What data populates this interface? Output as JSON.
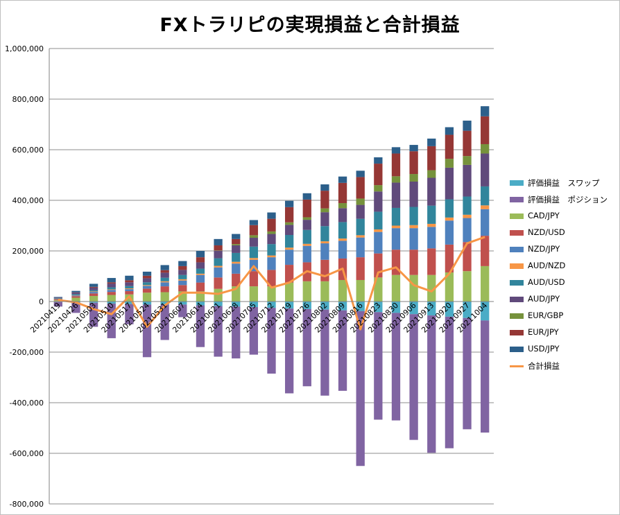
{
  "chart_data": {
    "type": "bar",
    "subtype": "stacked-bar-with-line",
    "title": "FXトラリピの実現損益と合計損益",
    "xlabel": "",
    "ylabel": "",
    "ylim": [
      -800000,
      1000000
    ],
    "yticks": [
      -800000,
      -600000,
      -400000,
      -200000,
      0,
      200000,
      400000,
      600000,
      800000,
      1000000
    ],
    "ytick_labels": [
      "-800,000",
      "-600,000",
      "-400,000",
      "-200,000",
      "0",
      "200,000",
      "400,000",
      "600,000",
      "800,000",
      "1,000,000"
    ],
    "grid": true,
    "legend_position": "right",
    "categories": [
      "20210419",
      "20210426",
      "20210503",
      "20210510",
      "20210517",
      "20210524",
      "20210531",
      "20210607",
      "20210614",
      "20210621",
      "20210628",
      "20210705",
      "20210712",
      "20210719",
      "20210726",
      "20210802",
      "20210809",
      "20210816",
      "20210823",
      "20210830",
      "20210906",
      "20210913",
      "20210920",
      "20210927",
      "20211004"
    ],
    "x_tick_labels": [
      "20210419",
      "20210426",
      "20210503",
      "20210510",
      "20210517",
      "20210524",
      "20210531",
      "20210607",
      "20210614",
      "20210621",
      "20210628",
      "20210705",
      "20210712",
      "20210719",
      "20210726",
      "20210802",
      "20210809",
      "20210816",
      "20210823",
      "20210830",
      "20210906",
      "20210913",
      "20210920",
      "20210927",
      "20211004"
    ],
    "series": [
      {
        "name": "評価損益　スワップ",
        "color": "#4bacc6",
        "kind": "bar",
        "values": [
          -2000,
          -3000,
          -5000,
          -8000,
          -10000,
          -12000,
          -12000,
          -12000,
          -15000,
          -18000,
          -20000,
          -22000,
          -25000,
          -28000,
          -30000,
          -32000,
          -35000,
          -38000,
          -42000,
          -45000,
          -50000,
          -55000,
          -60000,
          -65000,
          -75000
        ]
      },
      {
        "name": "評価損益　ポジション",
        "color": "#8064a2",
        "kind": "bar",
        "values": [
          -18000,
          -42000,
          -95000,
          -137000,
          -80000,
          -208000,
          -140000,
          -50000,
          -165000,
          -200000,
          -205000,
          -188000,
          -260000,
          -335000,
          -305000,
          -340000,
          -318000,
          -612000,
          -425000,
          -425000,
          -497000,
          -543000,
          -520000,
          -440000,
          -443000
        ]
      },
      {
        "name": "CAD/JPY",
        "color": "#9bbb59",
        "kind": "bar",
        "values": [
          5000,
          15000,
          22000,
          26000,
          28000,
          35000,
          37000,
          40000,
          40000,
          50000,
          60000,
          60000,
          60000,
          75000,
          80000,
          80000,
          85000,
          85000,
          95000,
          105000,
          105000,
          105000,
          115000,
          120000,
          140000
        ]
      },
      {
        "name": "NZD/USD",
        "color": "#c0504d",
        "kind": "bar",
        "values": [
          3000,
          6000,
          10000,
          12000,
          13000,
          16000,
          23000,
          25000,
          35000,
          45000,
          50000,
          60000,
          65000,
          70000,
          75000,
          85000,
          85000,
          90000,
          95000,
          100000,
          100000,
          105000,
          110000,
          115000,
          120000
        ]
      },
      {
        "name": "NZD/JPY",
        "color": "#4f81bd",
        "kind": "bar",
        "values": [
          2000,
          3000,
          6000,
          8000,
          8000,
          11000,
          16000,
          18000,
          30000,
          40000,
          40000,
          45000,
          50000,
          60000,
          65000,
          65000,
          70000,
          78000,
          85000,
          85000,
          85000,
          85000,
          95000,
          95000,
          105000
        ]
      },
      {
        "name": "AUD/NZD",
        "color": "#f79646",
        "kind": "bar",
        "values": [
          1000,
          1000,
          2000,
          2000,
          3000,
          3000,
          4000,
          5000,
          5000,
          6000,
          7000,
          7000,
          7000,
          8000,
          8000,
          8000,
          9000,
          9000,
          10000,
          10000,
          12000,
          12000,
          12000,
          13000,
          15000
        ]
      },
      {
        "name": "AUD/USD",
        "color": "#31859c",
        "kind": "bar",
        "values": [
          2000,
          4000,
          5000,
          8000,
          9000,
          11000,
          14000,
          17000,
          20000,
          30000,
          35000,
          45000,
          45000,
          50000,
          55000,
          60000,
          65000,
          65000,
          70000,
          70000,
          72000,
          72000,
          72000,
          72000,
          75000
        ]
      },
      {
        "name": "AUD/JPY",
        "color": "#604a7b",
        "kind": "bar",
        "values": [
          3000,
          6000,
          10000,
          15000,
          15000,
          16000,
          20000,
          20000,
          25000,
          30000,
          30000,
          35000,
          40000,
          40000,
          40000,
          55000,
          55000,
          55000,
          80000,
          100000,
          100000,
          110000,
          125000,
          125000,
          130000
        ]
      },
      {
        "name": "EUR/GBP",
        "color": "#76923c",
        "kind": "bar",
        "values": [
          0,
          0,
          0,
          0,
          0,
          0,
          0,
          0,
          0,
          1000,
          5000,
          10000,
          10000,
          10000,
          10000,
          15000,
          20000,
          25000,
          25000,
          25000,
          30000,
          30000,
          35000,
          35000,
          37000
        ]
      },
      {
        "name": "EUR/JPY",
        "color": "#953735",
        "kind": "bar",
        "values": [
          0,
          1000,
          3000,
          5000,
          8000,
          10000,
          10000,
          15000,
          20000,
          20000,
          20000,
          40000,
          50000,
          60000,
          70000,
          70000,
          80000,
          85000,
          85000,
          90000,
          90000,
          95000,
          95000,
          100000,
          110000
        ]
      },
      {
        "name": "USD/JPY",
        "color": "#2c5f8a",
        "kind": "bar",
        "values": [
          2000,
          6000,
          12000,
          17000,
          18000,
          16000,
          20000,
          20000,
          25000,
          25000,
          20000,
          20000,
          25000,
          25000,
          25000,
          25000,
          25000,
          25000,
          25000,
          25000,
          25000,
          30000,
          30000,
          40000,
          40000
        ]
      },
      {
        "name": "合計損益",
        "color": "#f79646",
        "kind": "line",
        "values": [
          6000,
          -3000,
          -30000,
          -50000,
          20000,
          -100000,
          -15000,
          35000,
          35000,
          30000,
          50000,
          140000,
          55000,
          75000,
          120000,
          100000,
          130000,
          -110000,
          115000,
          135000,
          65000,
          40000,
          110000,
          230000,
          255000
        ]
      }
    ]
  }
}
